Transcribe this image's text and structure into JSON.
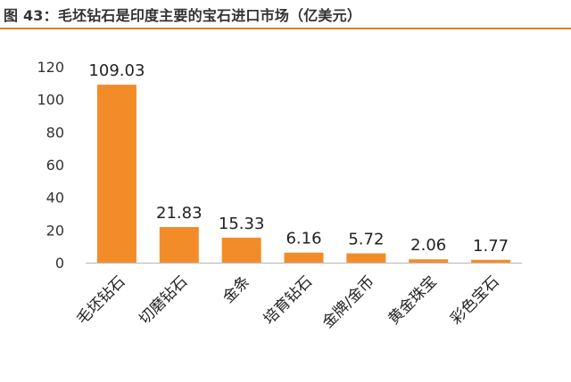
{
  "figure": {
    "title": "图 43：毛坯钻石是印度主要的宝石进口市场（亿美元）",
    "accent_color": "#E87B1E"
  },
  "chart_data": {
    "type": "bar",
    "title": "",
    "xlabel": "",
    "ylabel": "",
    "categories": [
      "毛坯钻石",
      "切磨钻石",
      "金条",
      "培育钻石",
      "金牌/金币",
      "黄金珠宝",
      "彩色宝石"
    ],
    "values": [
      109.03,
      21.83,
      15.33,
      6.16,
      5.72,
      2.06,
      1.77
    ],
    "data_labels": [
      "109.03",
      "21.83",
      "15.33",
      "6.16",
      "5.72",
      "2.06",
      "1.77"
    ],
    "ylim": [
      0,
      120
    ],
    "yticks": [
      0,
      20,
      40,
      60,
      80,
      100,
      120
    ],
    "grid": false,
    "legend": "none",
    "bar_color": "#F28C28"
  }
}
